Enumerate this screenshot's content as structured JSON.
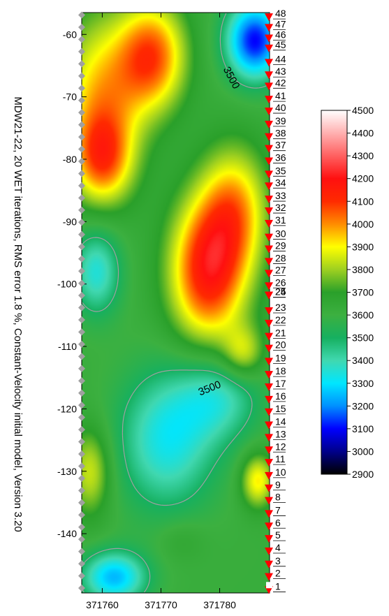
{
  "chart_data": {
    "type": "heatmap",
    "title": "MDW21-22, 20 WET iterations, RMS error 1.8 %, Constant-Velocity initial model, Version 3.20",
    "xlim": [
      371756.5,
      371788.5
    ],
    "ylim": [
      -149.5,
      -56.5
    ],
    "x_ticks": [
      371760,
      371770,
      371780
    ],
    "x_tick_labels": [
      "371760",
      "371770",
      "371780"
    ],
    "y_ticks": [
      -60,
      -70,
      -80,
      -90,
      -100,
      -110,
      -120,
      -130,
      -140
    ],
    "y_tick_labels": [
      "-60",
      "-70",
      "-80",
      "-90",
      "-100",
      "-110",
      "-120",
      "-130",
      "-140"
    ],
    "contour_level": 3500,
    "contour_labels": [
      "3500",
      "3500"
    ],
    "colorbar": {
      "min": 2900,
      "max": 4500,
      "tick_values": [
        4500,
        4400,
        4300,
        4200,
        4100,
        4000,
        3900,
        3800,
        3700,
        3600,
        3500,
        3400,
        3300,
        3200,
        3100,
        3000,
        2900
      ],
      "tick_labels": [
        "4500",
        "4400",
        "4300",
        "4200",
        "4100",
        "4000",
        "3900",
        "3800",
        "3700",
        "3600",
        "3500",
        "3400",
        "3300",
        "3200",
        "3100",
        "3000",
        "2900"
      ],
      "colors": [
        [
          2900,
          "#000000"
        ],
        [
          3000,
          "#00008a"
        ],
        [
          3100,
          "#0000ff"
        ],
        [
          3200,
          "#0090ff"
        ],
        [
          3300,
          "#00e6ff"
        ],
        [
          3400,
          "#40d8b0"
        ],
        [
          3500,
          "#16b060"
        ],
        [
          3600,
          "#3cb040"
        ],
        [
          3700,
          "#2aa02a"
        ],
        [
          3800,
          "#9ed020"
        ],
        [
          3900,
          "#ffff00"
        ],
        [
          4000,
          "#ff8c00"
        ],
        [
          4100,
          "#ff2a00"
        ],
        [
          4200,
          "#ff1010"
        ],
        [
          4300,
          "#ff6060"
        ],
        [
          4400,
          "#ffb0b0"
        ],
        [
          4500,
          "#ffffff"
        ]
      ]
    },
    "velocity_anomalies": [
      {
        "x": 371768.5,
        "y": -63.5,
        "v": 4050,
        "sx": 4.0,
        "sy": 6.0
      },
      {
        "x": 371760.0,
        "y": -70.0,
        "v": 3950,
        "sx": 5.0,
        "sy": 9.0
      },
      {
        "x": 371760.0,
        "y": -80.0,
        "v": 3970,
        "sx": 3.5,
        "sy": 5.0
      },
      {
        "x": 371778.0,
        "y": -98.0,
        "v": 4150,
        "sx": 4.5,
        "sy": 8.0
      },
      {
        "x": 371782.5,
        "y": -88.0,
        "v": 3950,
        "sx": 4.0,
        "sy": 7.0
      },
      {
        "x": 371786.0,
        "y": -61.0,
        "v": 3100,
        "sx": 3.5,
        "sy": 4.5
      },
      {
        "x": 371759.0,
        "y": -98.0,
        "v": 3350,
        "sx": 3.0,
        "sy": 5.0
      },
      {
        "x": 371771.0,
        "y": -125.0,
        "v": 3330,
        "sx": 6.0,
        "sy": 8.0
      },
      {
        "x": 371780.0,
        "y": -118.0,
        "v": 3400,
        "sx": 5.0,
        "sy": 5.0
      },
      {
        "x": 371762.0,
        "y": -147.0,
        "v": 3250,
        "sx": 4.0,
        "sy": 3.0
      },
      {
        "x": 371786.5,
        "y": -131.5,
        "v": 3920,
        "sx": 2.0,
        "sy": 3.0
      },
      {
        "x": 371758.0,
        "y": -130.0,
        "v": 3860,
        "sx": 2.5,
        "sy": 5.0
      },
      {
        "x": 371773.5,
        "y": -141.0,
        "v": 3680,
        "sx": 3.0,
        "sy": 2.5
      },
      {
        "x": 371784.0,
        "y": -111.0,
        "v": 3850,
        "sx": 2.5,
        "sy": 3.0
      }
    ],
    "base_velocity": 3620,
    "receivers": [
      {
        "label": "48",
        "y": -57.3
      },
      {
        "label": "47",
        "y": -59.0
      },
      {
        "label": "46",
        "y": -60.7
      },
      {
        "label": "45",
        "y": -62.3
      },
      {
        "label": "44",
        "y": -64.6
      },
      {
        "label": "43",
        "y": -66.6
      },
      {
        "label": "42",
        "y": -68.4
      },
      {
        "label": "41",
        "y": -70.5
      },
      {
        "label": "40",
        "y": -72.4
      },
      {
        "label": "39",
        "y": -74.5
      },
      {
        "label": "38",
        "y": -76.5
      },
      {
        "label": "37",
        "y": -78.4
      },
      {
        "label": "36",
        "y": -80.4
      },
      {
        "label": "35",
        "y": -82.5
      },
      {
        "label": "34",
        "y": -84.4
      },
      {
        "label": "33",
        "y": -86.5
      },
      {
        "label": "32",
        "y": -88.4
      },
      {
        "label": "31",
        "y": -90.4
      },
      {
        "label": "30",
        "y": -92.6
      },
      {
        "label": "29",
        "y": -94.5
      },
      {
        "label": "28",
        "y": -96.5
      },
      {
        "label": "27",
        "y": -98.4
      },
      {
        "label": "26",
        "y": -100.4
      },
      {
        "label": "25",
        "y": -101.9
      },
      {
        "label": "24",
        "y": -101.9
      },
      {
        "label": "23",
        "y": -104.4
      },
      {
        "label": "22",
        "y": -106.4
      },
      {
        "label": "21",
        "y": -108.5
      },
      {
        "label": "20",
        "y": -110.4
      },
      {
        "label": "19",
        "y": -112.5
      },
      {
        "label": "18",
        "y": -114.6
      },
      {
        "label": "17",
        "y": -116.6
      },
      {
        "label": "16",
        "y": -118.6
      },
      {
        "label": "15",
        "y": -120.6
      },
      {
        "label": "14",
        "y": -122.7
      },
      {
        "label": "13",
        "y": -124.7
      },
      {
        "label": "12",
        "y": -126.7
      },
      {
        "label": "11",
        "y": -128.7
      },
      {
        "label": "10",
        "y": -130.8
      },
      {
        "label": "9",
        "y": -132.8
      },
      {
        "label": "8",
        "y": -134.8
      },
      {
        "label": "7",
        "y": -136.9
      },
      {
        "label": "6",
        "y": -138.9
      },
      {
        "label": "5",
        "y": -140.9
      },
      {
        "label": "4",
        "y": -142.9
      },
      {
        "label": "3",
        "y": -145.0
      },
      {
        "label": "2",
        "y": -147.0
      },
      {
        "label": "1",
        "y": -149.1
      }
    ],
    "receiver_color": "#ff0000",
    "shot_count": 48,
    "shot_color": "#a0a0a0",
    "contour_color": "#a0a0a0"
  }
}
